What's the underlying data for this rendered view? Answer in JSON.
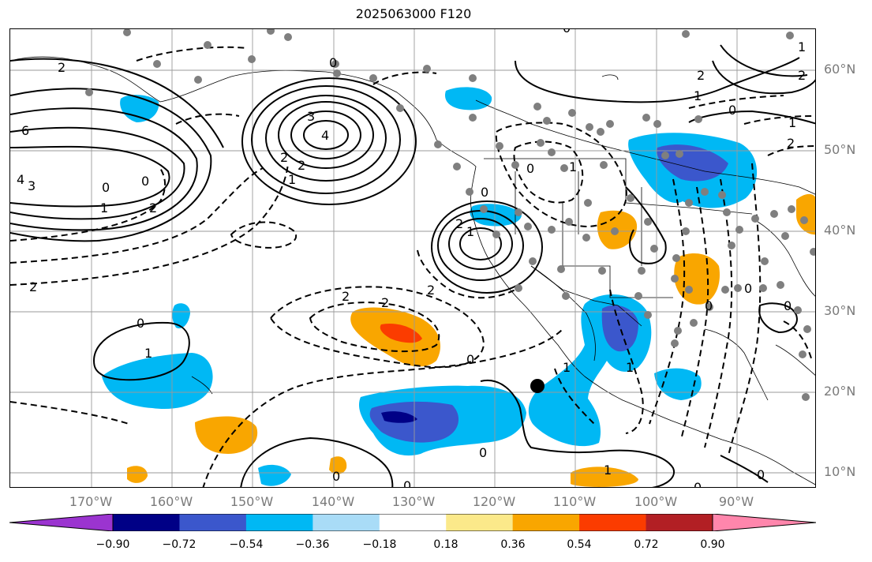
{
  "title": "2025063000 F120",
  "lat_labels": [
    "60°N",
    "50°N",
    "40°N",
    "30°N",
    "20°N",
    "10°N"
  ],
  "lon_labels": [
    "170°W",
    "160°W",
    "150°W",
    "140°W",
    "130°W",
    "120°W",
    "110°W",
    "100°W",
    "90°W"
  ],
  "colorbar": {
    "colors": [
      "#9b34d0",
      "#000086",
      "#3b57cc",
      "#00b8f4",
      "#a9dcf7",
      "#ffffff",
      "#fbe98a",
      "#f9a600",
      "#fb3c00",
      "#b21f24",
      "#ff86ac"
    ],
    "ticks": [
      "−0.90",
      "−0.72",
      "−0.54",
      "−0.36",
      "−0.18",
      "0.18",
      "0.36",
      "0.54",
      "0.72",
      "0.90"
    ]
  },
  "contour_labels": [
    "2",
    "6",
    "4",
    "3",
    "0",
    "0",
    "1",
    "2",
    "3",
    "4",
    "2",
    "2",
    "1",
    "2",
    "2",
    "2",
    "0",
    "1",
    "0",
    "0",
    "2",
    "1",
    "0",
    "1",
    "2",
    "0",
    "1",
    "0",
    "1",
    "0",
    "0",
    "1",
    "0",
    "0",
    "0",
    "1",
    "0",
    "2",
    "2",
    "1",
    "1",
    "0",
    "2",
    "0",
    "0"
  ]
}
